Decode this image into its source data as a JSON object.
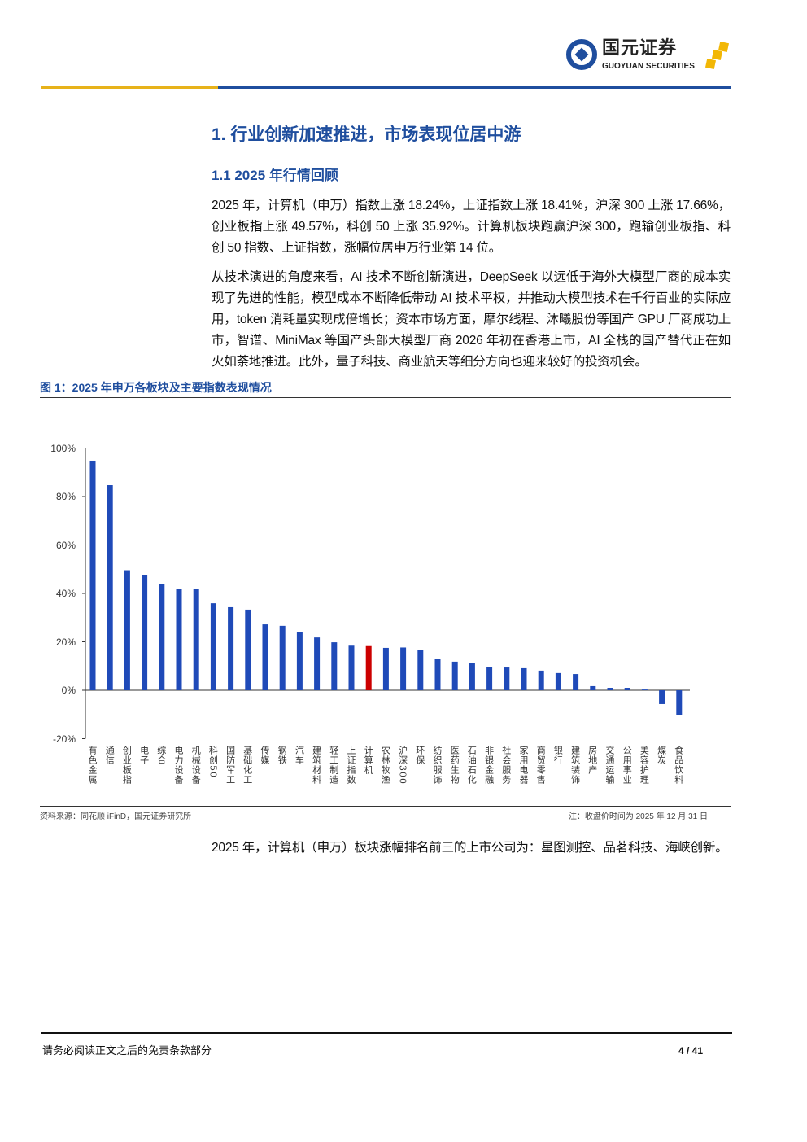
{
  "header": {
    "logo_cn": "国元证券",
    "logo_en": "GUOYUAN SECURITIES"
  },
  "section_title": "1. 行业创新加速推进，市场表现位居中游",
  "subsection_title": "1.1 2025 年行情回顾",
  "paragraphs": [
    "2025 年，计算机（申万）指数上涨 18.24%，上证指数上涨 18.41%，沪深 300 上涨 17.66%，创业板指上涨 49.57%，科创 50 上涨 35.92%。计算机板块跑赢沪深 300，跑输创业板指、科创 50 指数、上证指数，涨幅位居申万行业第 14 位。",
    "从技术演进的角度来看，AI 技术不断创新演进，DeepSeek 以远低于海外大模型厂商的成本实现了先进的性能，模型成本不断降低带动 AI 技术平权，并推动大模型技术在千行百业的实际应用，token 消耗量实现成倍增长；资本市场方面，摩尔线程、沐曦股份等国产 GPU 厂商成功上市，智谱、MiniMax 等国产头部大模型厂商 2026 年初在香港上市，AI 全栈的国产替代正在如火如荼地推进。此外，量子科技、商业航天等细分方向也迎来较好的投资机会。",
    "2025 年，计算机（申万）板块涨幅排名前三的上市公司为：星图测控、品茗科技、海峡创新。"
  ],
  "figure": {
    "title": "图 1：2025 年申万各板块及主要指数表现情况",
    "source": "资料来源：同花顺 iFinD，国元证券研究所",
    "note": "注：收盘价时间为 2025 年 12 月 31 日"
  },
  "chart_data": {
    "type": "bar",
    "title": "2025 年申万各板块及主要指数表现情况",
    "categories": [
      "有色金属",
      "通信",
      "创业板指",
      "电子",
      "综合",
      "电力设备",
      "机械设备",
      "科创50",
      "国防军工",
      "基础化工",
      "传媒",
      "钢铁",
      "汽车",
      "建筑材料",
      "轻工制造",
      "上证指数",
      "计算机",
      "农林牧渔",
      "沪深300",
      "环保",
      "纺织服饰",
      "医药生物",
      "石油石化",
      "非银金融",
      "社会服务",
      "家用电器",
      "商贸零售",
      "银行",
      "建筑装饰",
      "房地产",
      "交通运输",
      "公用事业",
      "美容护理",
      "煤炭",
      "食品饮料"
    ],
    "values": [
      94.8,
      84.7,
      49.57,
      47.7,
      43.7,
      41.7,
      41.7,
      35.92,
      34.3,
      33.3,
      27.2,
      26.6,
      24.2,
      21.8,
      19.8,
      18.41,
      18.24,
      17.5,
      17.66,
      16.5,
      13.1,
      11.8,
      11.4,
      9.7,
      9.4,
      9.1,
      8.1,
      7.1,
      6.7,
      1.7,
      1.0,
      1.0,
      0.3,
      -5.7,
      -10.1
    ],
    "highlight": "计算机",
    "colors": {
      "bar": "#1f4ab8",
      "highlight": "#cc0000"
    },
    "ylim": [
      -20,
      100
    ],
    "yticks": [
      "-20%",
      "0%",
      "20%",
      "40%",
      "60%",
      "80%",
      "100%"
    ],
    "xlabel": "",
    "ylabel": ""
  },
  "footer": {
    "disclaimer": "请务必阅读正文之后的免责条款部分",
    "page": "4 / 41"
  }
}
